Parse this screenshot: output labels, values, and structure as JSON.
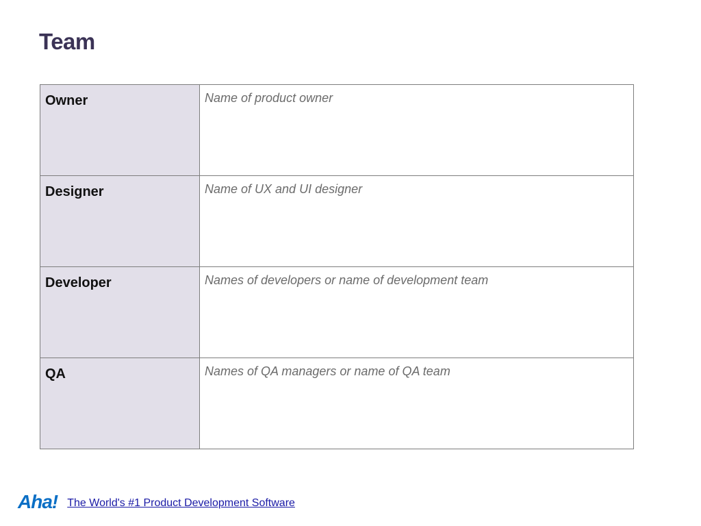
{
  "page": {
    "title": "Team"
  },
  "team": {
    "rows": [
      {
        "role": "Owner",
        "description": "Name of product owner"
      },
      {
        "role": "Designer",
        "description": "Name of UX and UI designer"
      },
      {
        "role": "Developer",
        "description": "Names of developers or name of development team"
      },
      {
        "role": "QA",
        "description": "Names of QA managers or name of QA team"
      }
    ]
  },
  "footer": {
    "logo_text": "Aha!",
    "link_text": "The World's #1 Product Development Software"
  },
  "colors": {
    "title": "#3b3356",
    "role_cell_bg": "#e2dfe9",
    "border": "#7d7d7d",
    "logo": "#0b6fc5",
    "link": "#1a1aa6"
  }
}
